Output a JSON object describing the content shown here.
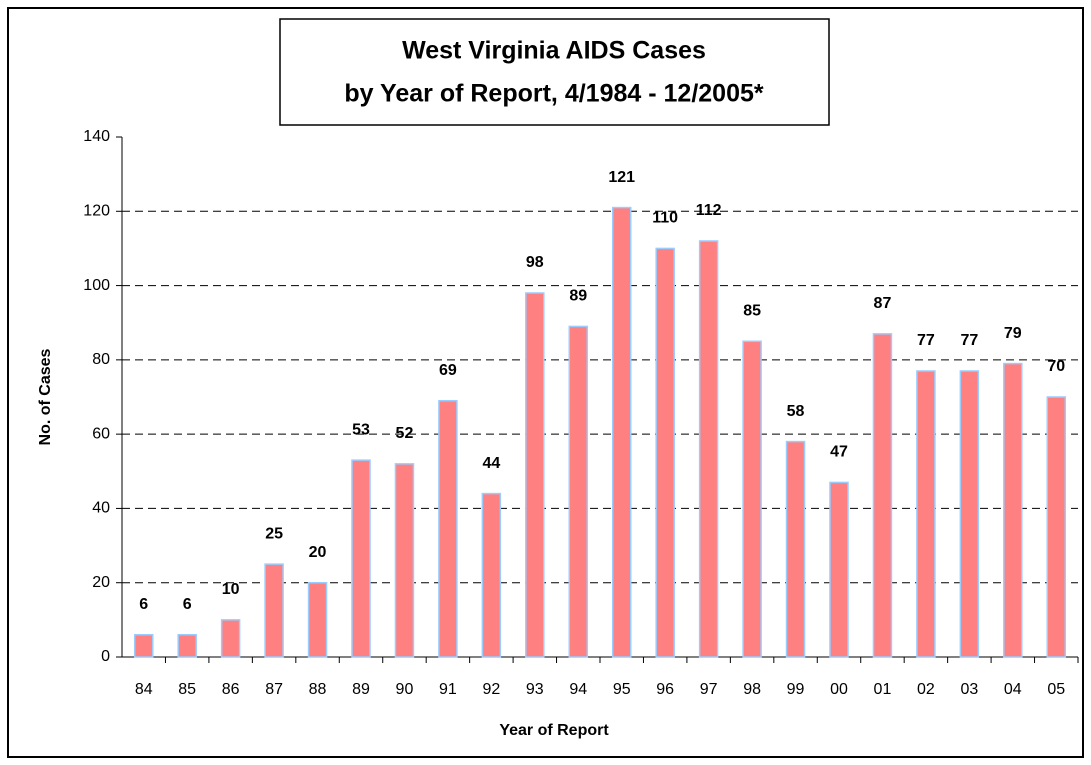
{
  "chart_data": {
    "type": "bar",
    "title": [
      "West Virginia AIDS Cases",
      "by Year of Report, 4/1984 - 12/2005*"
    ],
    "x_label": "Year of Report",
    "y_label": "No. of Cases",
    "categories": [
      "84",
      "85",
      "86",
      "87",
      "88",
      "89",
      "90",
      "91",
      "92",
      "93",
      "94",
      "95",
      "96",
      "97",
      "98",
      "99",
      "00",
      "01",
      "02",
      "03",
      "04",
      "05"
    ],
    "values": [
      6,
      6,
      10,
      25,
      20,
      53,
      52,
      69,
      44,
      98,
      89,
      121,
      110,
      112,
      85,
      58,
      47,
      87,
      77,
      77,
      79,
      70
    ],
    "color": "#ff8080",
    "edge_color": "#99ccff",
    "ylim": [
      0,
      140
    ],
    "yticks": [
      0,
      20,
      40,
      60,
      80,
      100,
      120,
      140
    ],
    "grid": true
  }
}
